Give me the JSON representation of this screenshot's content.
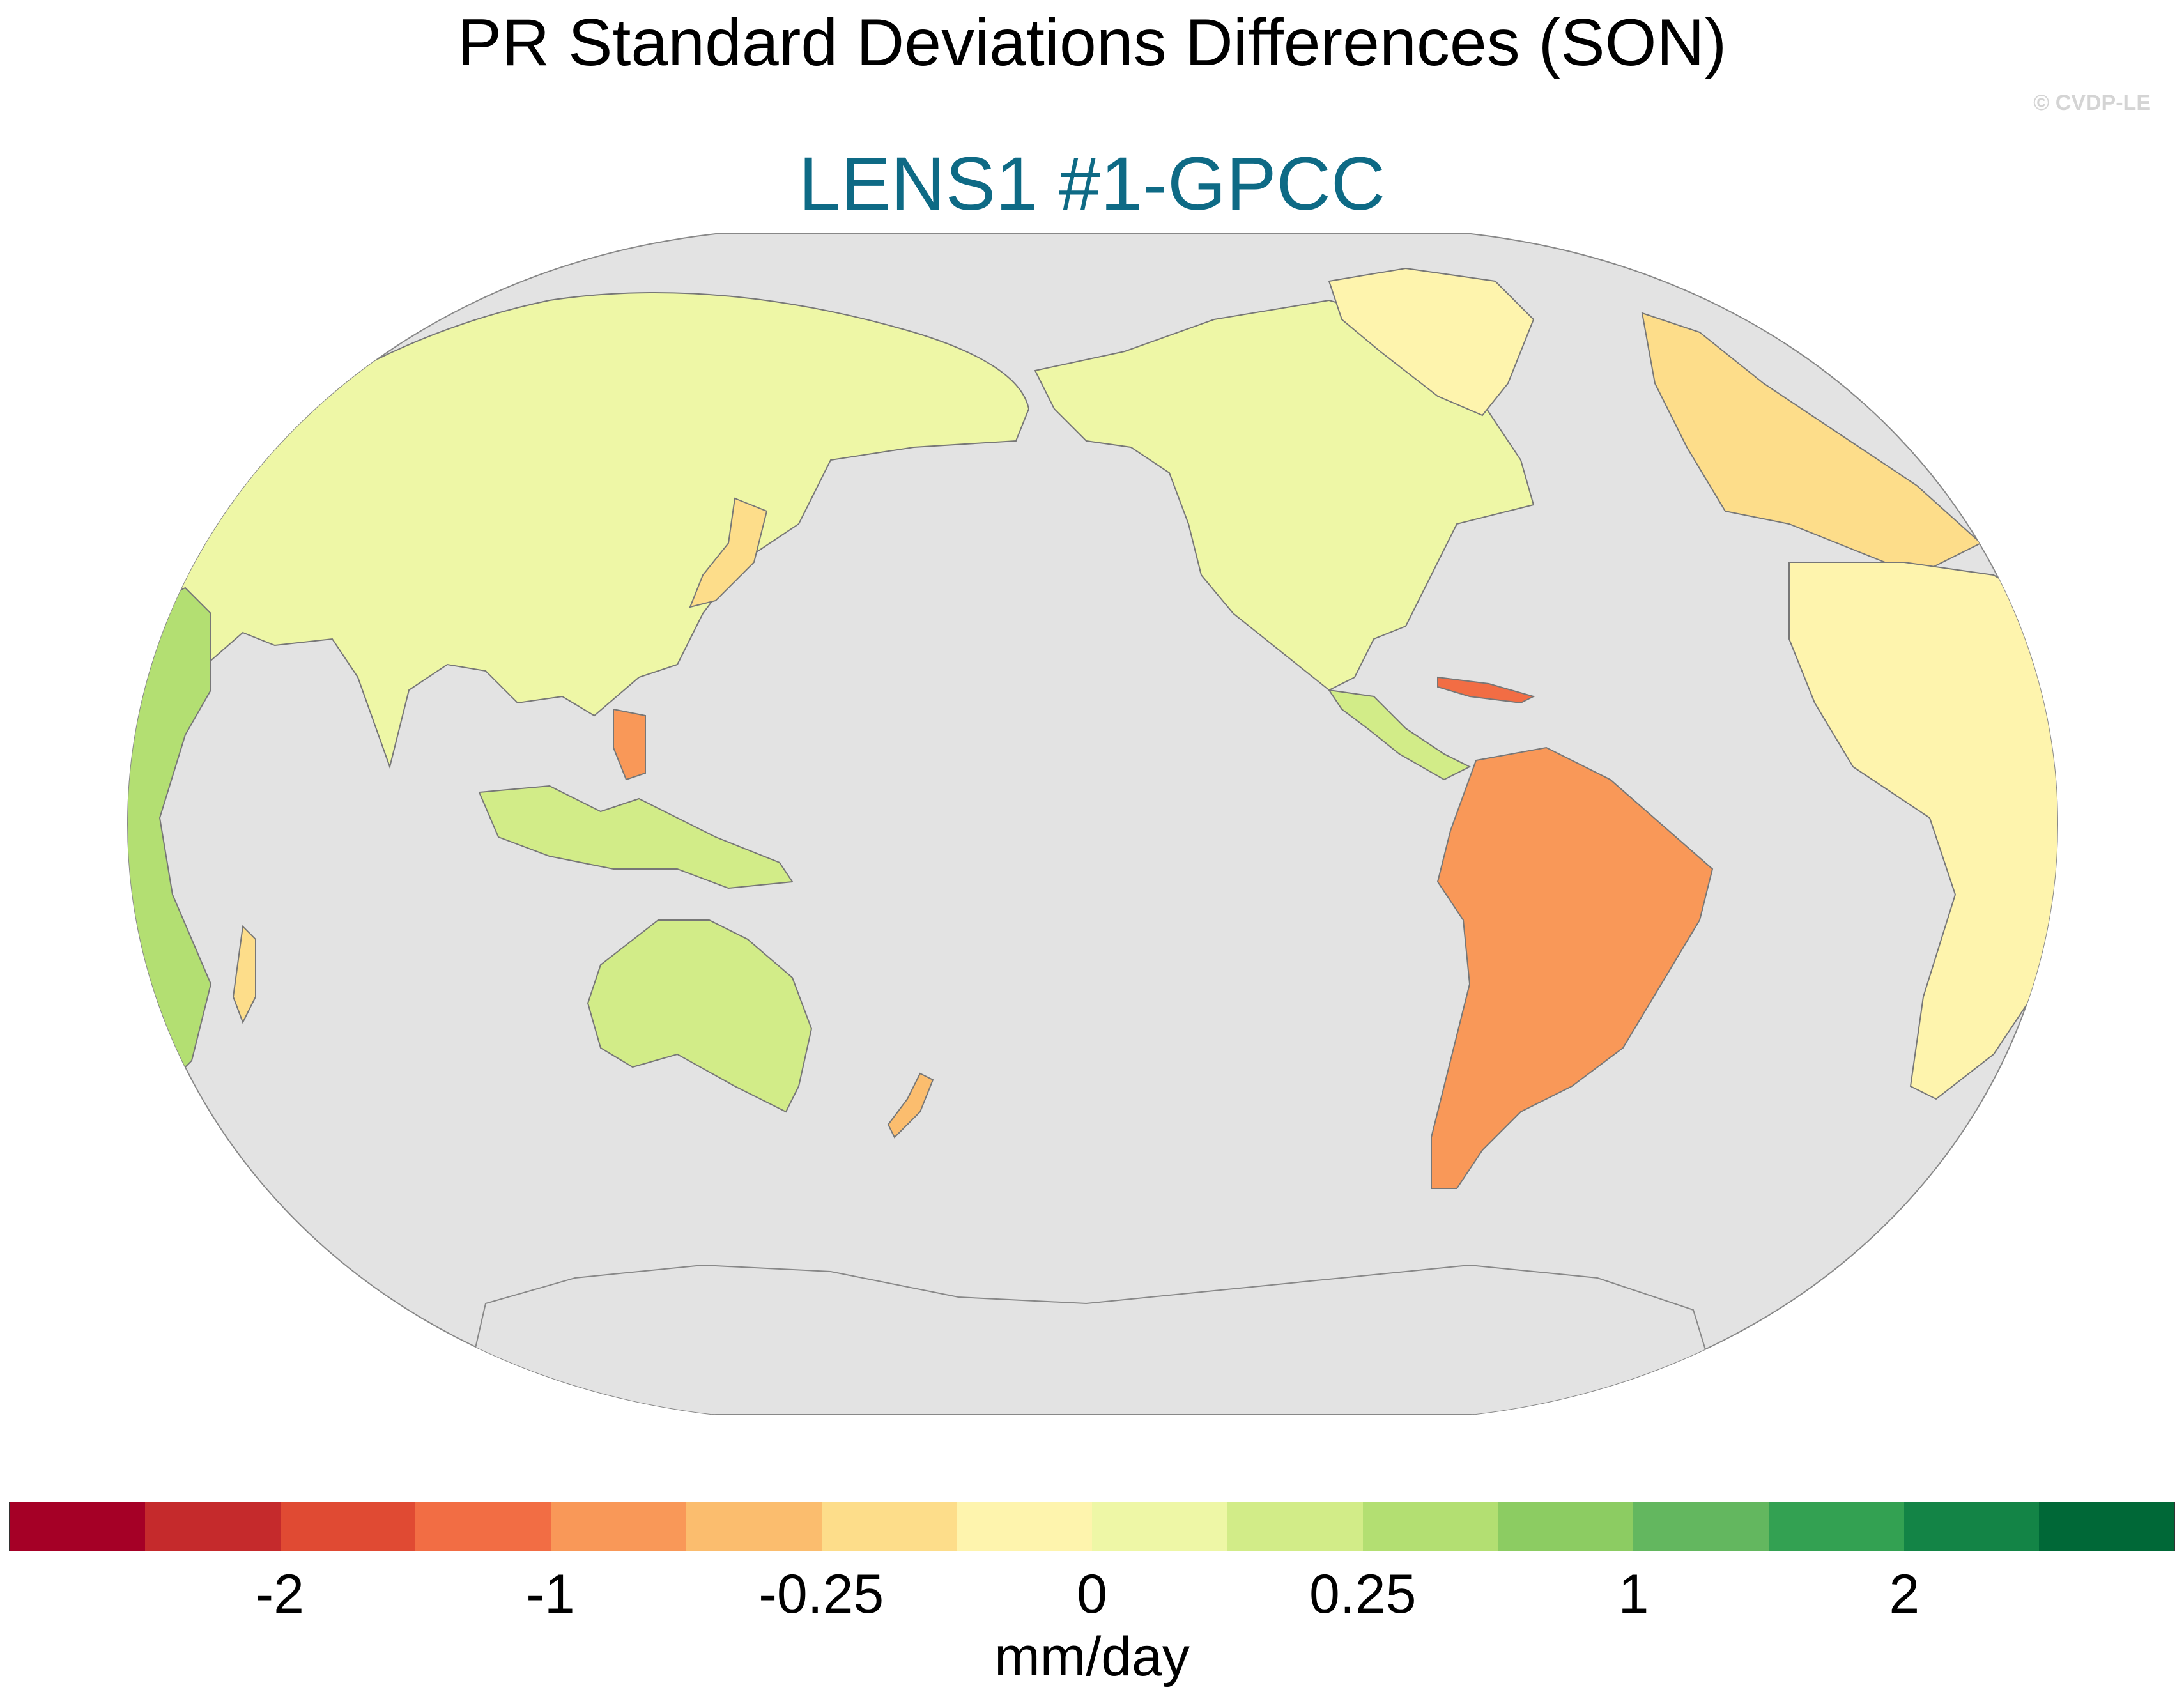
{
  "title": "PR Standard Deviations Differences (SON)",
  "subtitle": "LENS1 #1-GPCC",
  "subtitle_color": "#0e6a85",
  "copyright": "© CVDP-LE",
  "ocean_color": "#e3e3e3",
  "colorbar": {
    "colors": [
      "#a50026",
      "#c52a2c",
      "#e04a33",
      "#f26d44",
      "#f99858",
      "#fbbd6e",
      "#fddd8a",
      "#fef4ad",
      "#eef7a6",
      "#d2ec88",
      "#b3df72",
      "#8ccc62",
      "#63b75f",
      "#33a152",
      "#138446",
      "#006837"
    ],
    "tick_labels": [
      "-2",
      "-1",
      "-0.25",
      "0",
      "0.25",
      "1",
      "2"
    ],
    "units": "mm/day"
  }
}
